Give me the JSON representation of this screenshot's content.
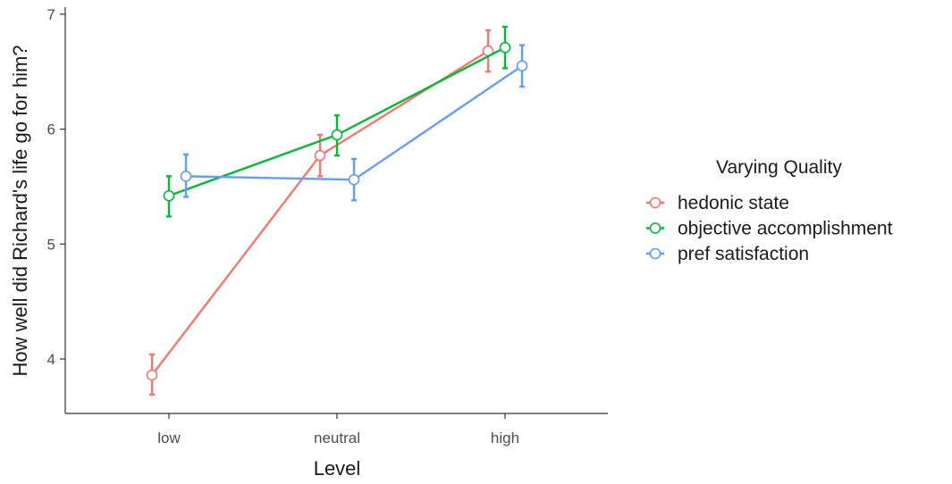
{
  "chart_data": {
    "type": "line",
    "xlabel": "Level",
    "ylabel": "How well did Richard's life go for him?",
    "categories": [
      "low",
      "neutral",
      "high"
    ],
    "ylim": [
      3.5,
      7.0
    ],
    "yticks": [
      4,
      5,
      6,
      7
    ],
    "grid": false,
    "legend": {
      "title": "Varying Quality",
      "placement": "right"
    },
    "series": [
      {
        "name": "hedonic state",
        "color": "#F8766D",
        "values": [
          3.86,
          5.77,
          6.68
        ],
        "err_low": [
          3.69,
          5.59,
          6.5
        ],
        "err_high": [
          4.04,
          5.95,
          6.86
        ]
      },
      {
        "name": "objective accomplishment",
        "color": "#00BA38",
        "values": [
          5.42,
          5.95,
          6.71
        ],
        "err_low": [
          5.24,
          5.77,
          6.53
        ],
        "err_high": [
          5.59,
          6.12,
          6.89
        ]
      },
      {
        "name": "pref satisfaction",
        "color": "#619CFF",
        "values": [
          5.59,
          5.56,
          6.55
        ],
        "err_low": [
          5.41,
          5.38,
          6.37
        ],
        "err_high": [
          5.78,
          5.74,
          6.73
        ]
      }
    ]
  }
}
